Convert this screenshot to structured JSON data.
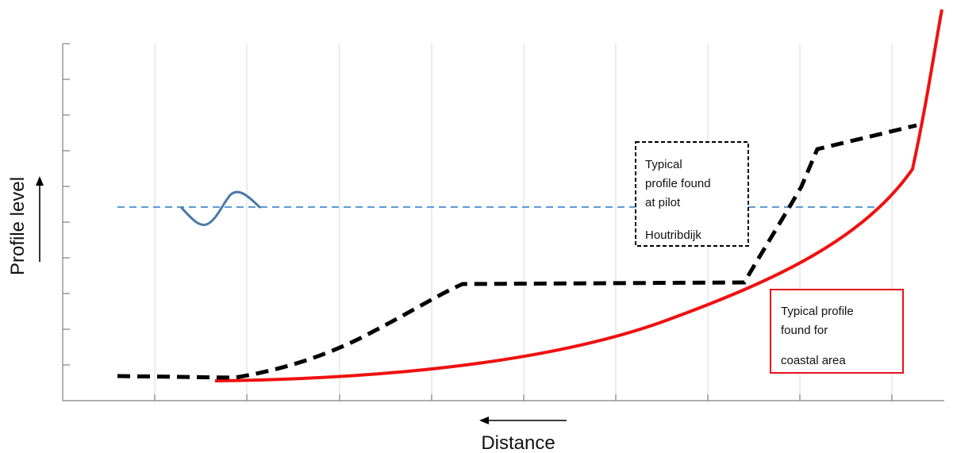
{
  "axes": {
    "y_label": "Profile level",
    "x_label": "Distance",
    "gridlines": true
  },
  "annotations": {
    "pilot_box": {
      "lines": [
        "Typical",
        "profile found",
        "at pilot",
        "Houtribdijk"
      ],
      "border_style": "dashed",
      "border_color": "#000000"
    },
    "coastal_box": {
      "lines": [
        "Typical profile",
        "found for",
        "coastal area"
      ],
      "border_style": "solid",
      "border_color": "#e8121b"
    }
  },
  "colors": {
    "pilot_profile": "#000000",
    "coastal_profile": "#f01010",
    "water_level": "#5b9bd5",
    "wave": "#4a7aa8",
    "grid": "#d9d9d9",
    "axis": "#7f7f7f"
  }
}
